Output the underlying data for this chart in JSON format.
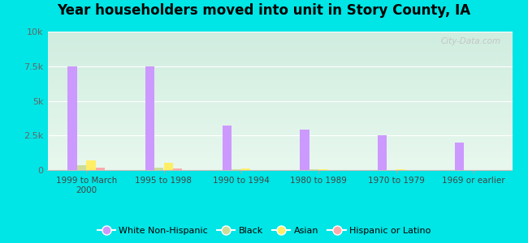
{
  "title": "Year householders moved into unit in Story County, IA",
  "categories": [
    "1999 to March\n2000",
    "1995 to 1998",
    "1990 to 1994",
    "1980 to 1989",
    "1970 to 1979",
    "1969 or earlier"
  ],
  "series": {
    "White Non-Hispanic": [
      7500,
      7500,
      3200,
      2900,
      2500,
      2000
    ],
    "Black": [
      350,
      150,
      40,
      40,
      0,
      0
    ],
    "Asian": [
      700,
      500,
      120,
      60,
      40,
      0
    ],
    "Hispanic or Latino": [
      180,
      120,
      25,
      0,
      0,
      0
    ]
  },
  "colors": {
    "White Non-Hispanic": "#cc99ff",
    "Black": "#ccdd99",
    "Asian": "#ffee66",
    "Hispanic or Latino": "#ffaaaa"
  },
  "ylim": [
    0,
    10000
  ],
  "yticks": [
    0,
    2500,
    5000,
    7500,
    10000
  ],
  "ytick_labels": [
    "0",
    "2.5k",
    "5k",
    "7.5k",
    "10k"
  ],
  "background_outer": "#00e5e5",
  "watermark": "City-Data.com",
  "bar_width": 0.12,
  "title_fontsize": 12
}
